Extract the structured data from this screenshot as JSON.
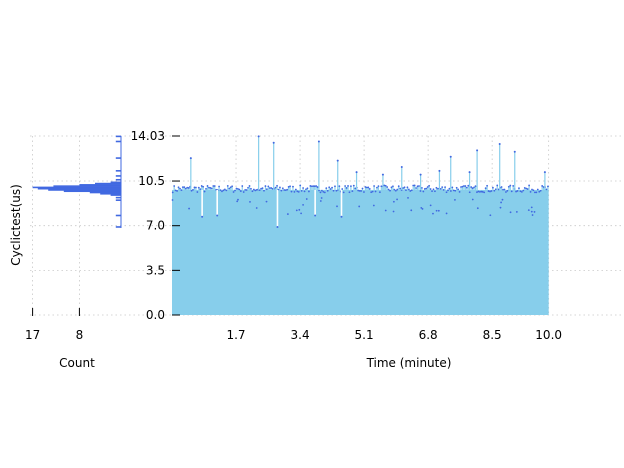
{
  "chart_data": [
    {
      "type": "bar",
      "title": "",
      "xlabel": "Time (minute)",
      "ylabel": "Cyclictest(us)",
      "xlim": [
        0,
        12
      ],
      "ylim": [
        0,
        14.03
      ],
      "xticks": [
        "1.7",
        "3.4",
        "5.1",
        "6.8",
        "8.5",
        "10.0"
      ],
      "xtick_values": [
        1.7,
        3.4,
        5.1,
        6.8,
        8.5,
        10.0
      ],
      "yticks": [
        "0.0",
        "3.5",
        "7.0",
        "10.5",
        "14.03"
      ],
      "ytick_values": [
        0,
        3.5,
        7.0,
        10.5,
        14.03
      ],
      "grid": true,
      "bar_color": "#87ceeb",
      "marker_color": "#4169e1",
      "typical_value": 9.8,
      "series": [
        {
          "points": [
            {
              "x": 0.5,
              "y": 12.3
            },
            {
              "x": 2.3,
              "y": 14.0
            },
            {
              "x": 2.7,
              "y": 13.5
            },
            {
              "x": 3.9,
              "y": 13.6
            },
            {
              "x": 4.4,
              "y": 12.1
            },
            {
              "x": 4.9,
              "y": 11.2
            },
            {
              "x": 5.6,
              "y": 11.0
            },
            {
              "x": 6.1,
              "y": 11.6
            },
            {
              "x": 6.6,
              "y": 11.0
            },
            {
              "x": 7.1,
              "y": 11.3
            },
            {
              "x": 7.4,
              "y": 12.4
            },
            {
              "x": 7.9,
              "y": 11.2
            },
            {
              "x": 8.1,
              "y": 12.9
            },
            {
              "x": 8.7,
              "y": 13.4
            },
            {
              "x": 9.1,
              "y": 12.8
            },
            {
              "x": 9.9,
              "y": 11.2
            },
            {
              "x": 2.8,
              "y": 6.9
            },
            {
              "x": 0.8,
              "y": 7.7
            },
            {
              "x": 4.5,
              "y": 7.7
            },
            {
              "x": 1.2,
              "y": 7.8
            },
            {
              "x": 3.8,
              "y": 7.8
            }
          ]
        }
      ]
    },
    {
      "type": "bar",
      "orientation": "horizontal",
      "xlabel": "Count",
      "ylabel": "",
      "xticks": [
        "17",
        "8"
      ],
      "xtick_values": [
        17,
        8
      ],
      "xlim": [
        17.5,
        0
      ],
      "ylim": [
        0,
        14.03
      ],
      "bar_color": "#4169e1",
      "bins": [
        {
          "y": 10.0,
          "count": 17
        },
        {
          "y": 9.9,
          "count": 16
        },
        {
          "y": 9.8,
          "count": 14
        },
        {
          "y": 10.1,
          "count": 13
        },
        {
          "y": 9.7,
          "count": 11
        },
        {
          "y": 10.2,
          "count": 8
        },
        {
          "y": 9.6,
          "count": 6
        },
        {
          "y": 10.3,
          "count": 5
        },
        {
          "y": 9.5,
          "count": 4
        },
        {
          "y": 10.4,
          "count": 2
        },
        {
          "y": 9.4,
          "count": 2
        },
        {
          "y": 9.2,
          "count": 1
        },
        {
          "y": 9.0,
          "count": 1
        },
        {
          "y": 10.6,
          "count": 1
        },
        {
          "y": 10.9,
          "count": 1
        },
        {
          "y": 11.3,
          "count": 1
        },
        {
          "y": 7.8,
          "count": 1
        },
        {
          "y": 6.9,
          "count": 1
        },
        {
          "y": 12.3,
          "count": 1
        },
        {
          "y": 13.6,
          "count": 1
        },
        {
          "y": 14.0,
          "count": 1
        }
      ]
    }
  ]
}
